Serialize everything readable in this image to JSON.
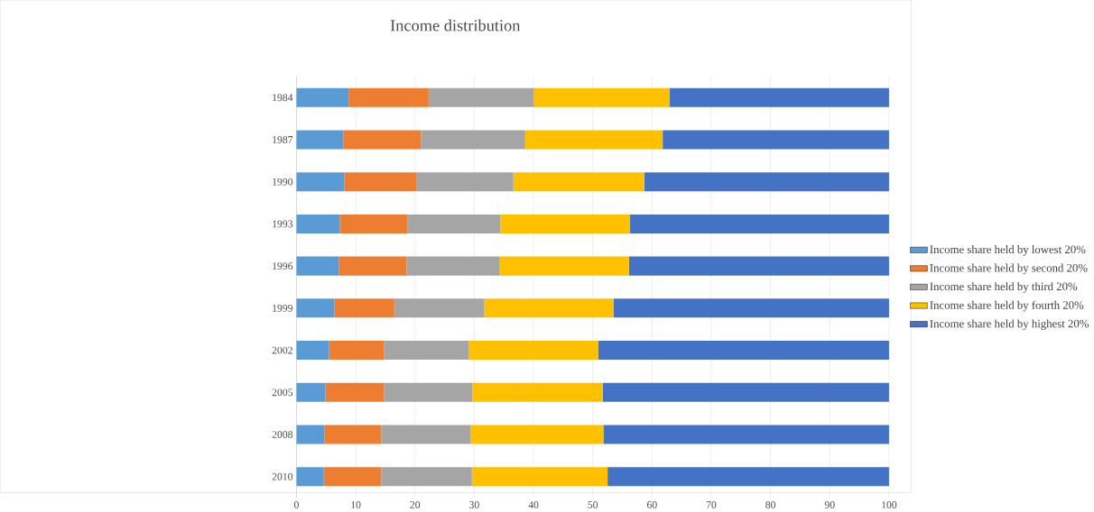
{
  "chart_data": {
    "type": "bar",
    "orientation": "horizontal",
    "stacked": true,
    "title": "Income distribution",
    "categories": [
      "1984",
      "1987",
      "1990",
      "1993",
      "1996",
      "1999",
      "2002",
      "2005",
      "2008",
      "2010"
    ],
    "series": [
      {
        "name": "Income share held by lowest 20%",
        "color": "#5b9bd5",
        "values": [
          8.8,
          7.9,
          8.1,
          7.3,
          7.2,
          6.4,
          5.5,
          4.9,
          4.7,
          4.6
        ]
      },
      {
        "name": "Income share held by second 20%",
        "color": "#ed7d31",
        "values": [
          13.5,
          13.1,
          12.1,
          11.4,
          11.4,
          10.1,
          9.3,
          9.9,
          9.6,
          9.7
        ]
      },
      {
        "name": "Income share held by third 20%",
        "color": "#a5a5a5",
        "values": [
          17.8,
          17.6,
          16.4,
          15.7,
          15.7,
          15.2,
          14.3,
          14.9,
          15.1,
          15.3
        ]
      },
      {
        "name": "Income share held by fourth 20%",
        "color": "#ffc000",
        "values": [
          22.9,
          23.2,
          22.1,
          21.9,
          21.8,
          21.8,
          21.8,
          22.0,
          22.4,
          22.9
        ]
      },
      {
        "name": "Income share held by highest 20%",
        "color": "#4472c4",
        "values": [
          37.0,
          38.2,
          41.3,
          43.7,
          43.9,
          46.5,
          49.1,
          48.3,
          48.2,
          47.5
        ]
      }
    ],
    "xlim": [
      0,
      100
    ],
    "xticks": [
      0,
      10,
      20,
      30,
      40,
      50,
      60,
      70,
      80,
      90,
      100
    ],
    "grid": "x",
    "legend": "right"
  }
}
